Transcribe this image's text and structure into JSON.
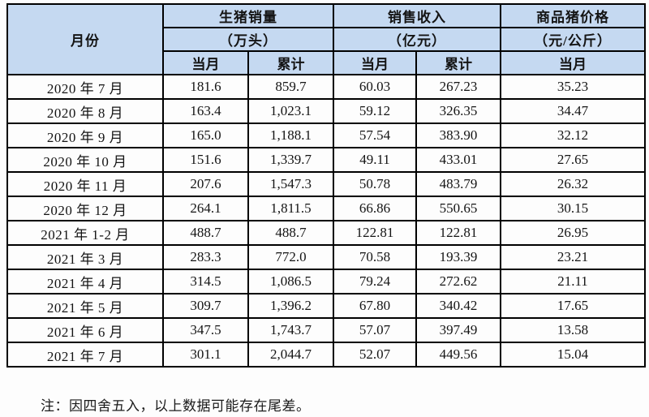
{
  "table": {
    "header": {
      "month_label": "月份",
      "groups": [
        {
          "title": "生猪销量",
          "unit": "（万头）",
          "subcols": [
            "当月",
            "累计"
          ]
        },
        {
          "title": "销售收入",
          "unit": "（亿元）",
          "subcols": [
            "当月",
            "累计"
          ]
        },
        {
          "title": "商品猪价格",
          "unit": "（元/公斤）",
          "subcols": [
            "当月"
          ]
        }
      ]
    },
    "rows": [
      {
        "month": "2020 年 7 月",
        "values": [
          "181.6",
          "859.7",
          "60.03",
          "267.23",
          "35.23"
        ]
      },
      {
        "month": "2020 年 8 月",
        "values": [
          "163.4",
          "1,023.1",
          "59.12",
          "326.35",
          "34.47"
        ]
      },
      {
        "month": "2020 年 9 月",
        "values": [
          "165.0",
          "1,188.1",
          "57.54",
          "383.90",
          "32.12"
        ]
      },
      {
        "month": "2020 年 10 月",
        "values": [
          "151.6",
          "1,339.7",
          "49.11",
          "433.01",
          "27.65"
        ]
      },
      {
        "month": "2020 年 11 月",
        "values": [
          "207.6",
          "1,547.3",
          "50.78",
          "483.79",
          "26.32"
        ]
      },
      {
        "month": "2020 年 12 月",
        "values": [
          "264.1",
          "1,811.5",
          "66.86",
          "550.65",
          "30.15"
        ]
      },
      {
        "month": "2021 年 1-2 月",
        "values": [
          "488.7",
          "488.7",
          "122.81",
          "122.81",
          "26.95"
        ]
      },
      {
        "month": "2021 年 3 月",
        "values": [
          "283.3",
          "772.0",
          "70.58",
          "193.39",
          "23.21"
        ]
      },
      {
        "month": "2021 年 4 月",
        "values": [
          "314.5",
          "1,086.5",
          "79.24",
          "272.62",
          "21.11"
        ]
      },
      {
        "month": "2021 年 5 月",
        "values": [
          "309.7",
          "1,396.2",
          "67.80",
          "340.42",
          "17.65"
        ]
      },
      {
        "month": "2021 年 6 月",
        "values": [
          "347.5",
          "1,743.7",
          "57.07",
          "397.49",
          "13.58"
        ]
      },
      {
        "month": "2021 年 7 月",
        "values": [
          "301.1",
          "2,044.7",
          "52.07",
          "449.56",
          "15.04"
        ]
      }
    ]
  },
  "note": "注：因四舍五入，以上数据可能存在尾差。",
  "colors": {
    "header_bg": "#c5d9f1",
    "border": "#000000",
    "text": "#141414",
    "page_bg": "#fdfdfd"
  }
}
